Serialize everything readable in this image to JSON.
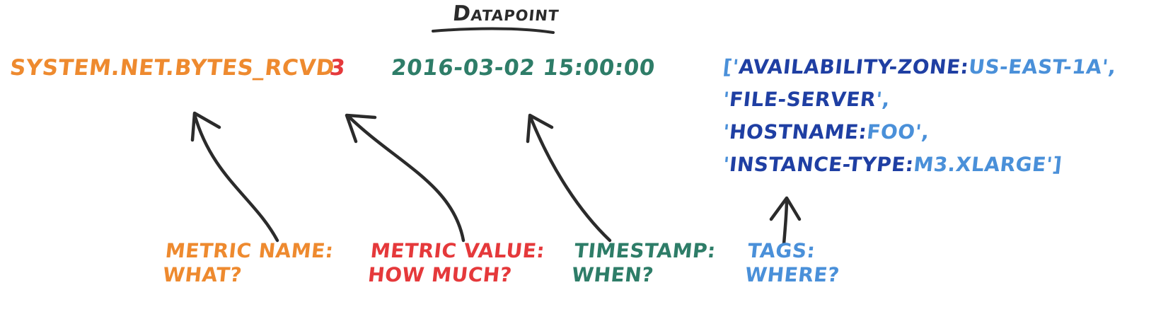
{
  "title": "Datapoint",
  "colors": {
    "name": "#ee8a2f",
    "value": "#e5393b",
    "timestamp": "#2e7d68",
    "tag_key": "#1f3fa3",
    "tag_value": "#4a90d9",
    "ink": "#2b2b2b"
  },
  "datapoint": {
    "metric_name": "system.net.bytes_rcvd",
    "metric_value": "3",
    "timestamp": "2016-03-02 15:00:00",
    "tags": [
      {
        "open": "['",
        "key": "availability-zone:",
        "value": "us-east-1a",
        "close": "',"
      },
      {
        "open": "'",
        "key": "file-server",
        "value": "",
        "close": "',"
      },
      {
        "open": "'",
        "key": "hostname:",
        "value": "foo",
        "close": "',"
      },
      {
        "open": "'",
        "key": "instance-type:",
        "value": "m3.xlarge",
        "close": "']"
      }
    ]
  },
  "captions": {
    "name": {
      "label": "Metric name:",
      "question": "What?"
    },
    "value": {
      "label": "Metric value:",
      "question": "How much?"
    },
    "timestamp": {
      "label": "Timestamp:",
      "question": "When?"
    },
    "tags": {
      "label": "Tags:",
      "question": "Where?"
    }
  }
}
